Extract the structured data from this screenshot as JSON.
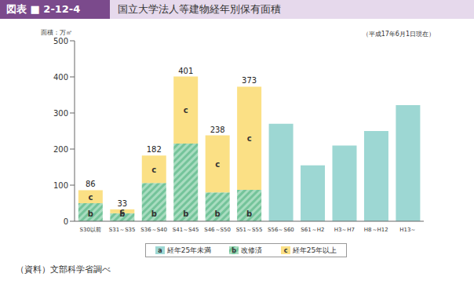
{
  "chart_data": {
    "type": "bar",
    "figure_number": "図表 ■ 2-12-4",
    "title": "国立大学法人等建物経年別保有面積",
    "y_label": "面積：万㎡",
    "note": "（平成17年6月1日現在）",
    "source": "（資料）文部科学省調べ",
    "categories": [
      "S30以前",
      "S31～S35",
      "S36～S40",
      "S41～S45",
      "S46～S50",
      "S51～S55",
      "S56～S60",
      "S61～H2",
      "H3～H7",
      "H8～H12",
      "H13～"
    ],
    "series": [
      {
        "name": "経年25年未満",
        "label": "a",
        "color": "#9dd7d3",
        "values": [
          null,
          null,
          null,
          null,
          null,
          null,
          270,
          155,
          210,
          250,
          322
        ]
      },
      {
        "name": "改修済",
        "label": "b",
        "color": "#74c49a",
        "values": [
          50,
          22,
          106,
          215,
          80,
          87,
          null,
          null,
          null,
          null,
          null
        ]
      },
      {
        "name": "経年25年以上",
        "label": "c",
        "color": "#fbe085",
        "values": [
          36,
          11,
          76,
          186,
          158,
          286,
          null,
          null,
          null,
          null,
          null
        ]
      }
    ],
    "totals": [
      86,
      33,
      182,
      401,
      238,
      373,
      270,
      155,
      210,
      250,
      322
    ],
    "ylim": [
      0,
      500
    ],
    "yticks": [
      0,
      100,
      200,
      300,
      400,
      500
    ],
    "stacked": true,
    "grid": false,
    "legend": "bottom"
  }
}
